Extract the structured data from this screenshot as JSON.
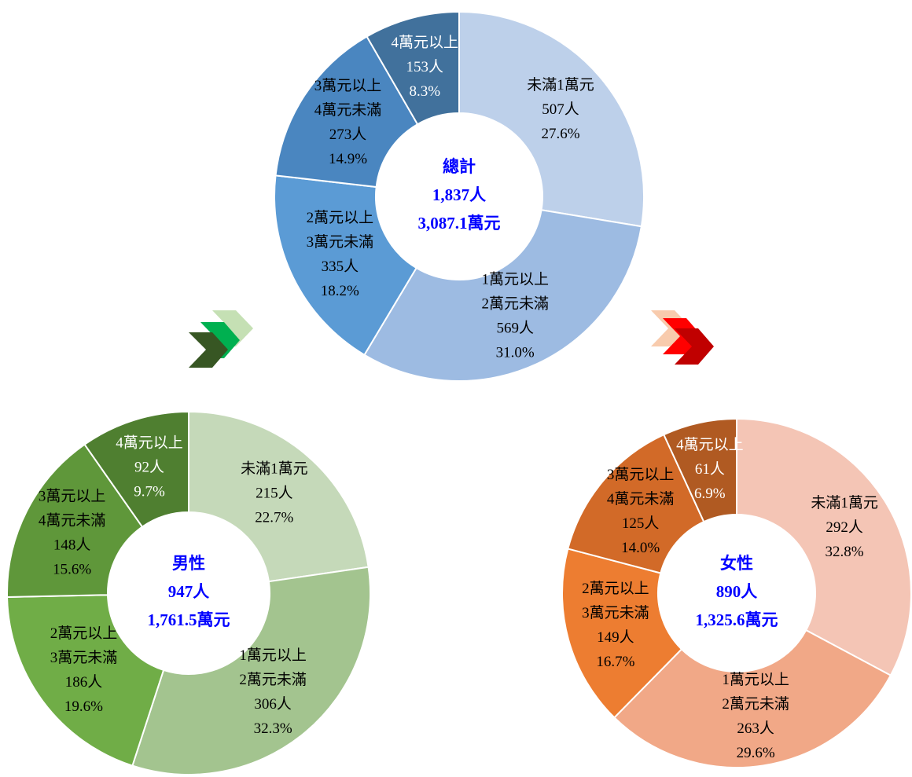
{
  "chart_data": [
    {
      "type": "donut",
      "center_labels": [
        "總計",
        "1,837人",
        "3,087.1萬元"
      ],
      "categories": [
        [
          "未滿1萬元"
        ],
        [
          "1萬元以上",
          "2萬元未滿"
        ],
        [
          "2萬元以上",
          "3萬元未滿"
        ],
        [
          "3萬元以上",
          "4萬元未滿"
        ],
        [
          "4萬元以上"
        ]
      ],
      "values": [
        507,
        569,
        335,
        273,
        153
      ],
      "value_labels": [
        "507人",
        "569人",
        "335人",
        "273人",
        "153人"
      ],
      "percent_labels": [
        "27.6%",
        "31.0%",
        "18.2%",
        "14.9%",
        "8.3%"
      ],
      "colors": [
        "#bdd0ea",
        "#9dbbe2",
        "#5b9bd5",
        "#4a86c0",
        "#41719c"
      ]
    },
    {
      "type": "donut",
      "center_labels": [
        "男性",
        "947人",
        "1,761.5萬元"
      ],
      "categories": [
        [
          "未滿1萬元"
        ],
        [
          "1萬元以上",
          "2萬元未滿"
        ],
        [
          "2萬元以上",
          "3萬元未滿"
        ],
        [
          "3萬元以上",
          "4萬元未滿"
        ],
        [
          "4萬元以上"
        ]
      ],
      "values": [
        215,
        306,
        186,
        148,
        92
      ],
      "value_labels": [
        "215人",
        "306人",
        "186人",
        "148人",
        "92人"
      ],
      "percent_labels": [
        "22.7%",
        "32.3%",
        "19.6%",
        "15.6%",
        "9.7%"
      ],
      "colors": [
        "#c5d9b9",
        "#a3c48f",
        "#70ad47",
        "#5f973a",
        "#4f7f30"
      ]
    },
    {
      "type": "donut",
      "center_labels": [
        "女性",
        "890人",
        "1,325.6萬元"
      ],
      "categories": [
        [
          "未滿1萬元"
        ],
        [
          "1萬元以上",
          "2萬元未滿"
        ],
        [
          "2萬元以上",
          "3萬元未滿"
        ],
        [
          "3萬元以上",
          "4萬元未滿"
        ],
        [
          "4萬元以上"
        ]
      ],
      "values": [
        292,
        263,
        149,
        125,
        61
      ],
      "value_labels": [
        "292人",
        "263人",
        "149人",
        "125人",
        "61人"
      ],
      "percent_labels": [
        "32.8%",
        "29.6%",
        "16.7%",
        "14.0%",
        "6.9%"
      ],
      "colors": [
        "#f4c5b5",
        "#f1a887",
        "#ed7d31",
        "#d26a28",
        "#b05a22"
      ]
    }
  ]
}
